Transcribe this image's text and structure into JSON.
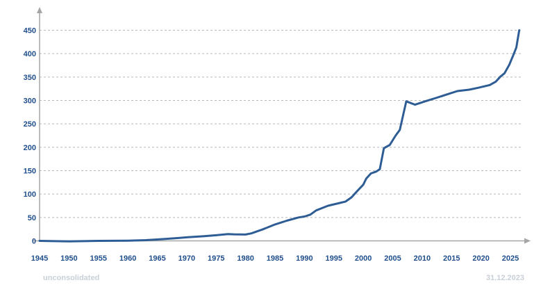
{
  "chart_data": {
    "type": "line",
    "title": "",
    "xlabel": "",
    "ylabel": "",
    "xlim": [
      1945,
      2025
    ],
    "ylim": [
      0,
      450
    ],
    "x_ticks": [
      1945,
      1950,
      1955,
      1960,
      1965,
      1970,
      1975,
      1980,
      1985,
      1990,
      1995,
      2000,
      2005,
      2010,
      2015,
      2020,
      2025
    ],
    "y_ticks": [
      0,
      50,
      100,
      150,
      200,
      250,
      300,
      350,
      400,
      450
    ],
    "grid": true,
    "legend": "none",
    "series": [
      {
        "color": "#2e5d95",
        "points": [
          [
            1945,
            0
          ],
          [
            1950,
            -1
          ],
          [
            1955,
            0
          ],
          [
            1960,
            0.5
          ],
          [
            1963,
            1.5
          ],
          [
            1965,
            3
          ],
          [
            1968,
            5.5
          ],
          [
            1970,
            7.5
          ],
          [
            1973,
            10
          ],
          [
            1975,
            12
          ],
          [
            1977,
            14.5
          ],
          [
            1978,
            14
          ],
          [
            1980,
            13.5
          ],
          [
            1981,
            16
          ],
          [
            1983,
            25
          ],
          [
            1985,
            35
          ],
          [
            1987,
            43
          ],
          [
            1989,
            50
          ],
          [
            1990,
            52
          ],
          [
            1991,
            56
          ],
          [
            1992,
            65
          ],
          [
            1994,
            75
          ],
          [
            1996,
            81
          ],
          [
            1997,
            84
          ],
          [
            1998,
            93
          ],
          [
            1999,
            107
          ],
          [
            2000,
            120
          ],
          [
            2000.5,
            133
          ],
          [
            2001.3,
            144
          ],
          [
            2002.2,
            148
          ],
          [
            2002.8,
            153
          ],
          [
            2003.5,
            198
          ],
          [
            2004.5,
            205
          ],
          [
            2005.5,
            225
          ],
          [
            2006.2,
            237
          ],
          [
            2007.3,
            298
          ],
          [
            2008.8,
            291
          ],
          [
            2010.5,
            298
          ],
          [
            2012.5,
            306
          ],
          [
            2014.5,
            314
          ],
          [
            2016,
            320
          ],
          [
            2018,
            323
          ],
          [
            2019.5,
            327
          ],
          [
            2020.5,
            330
          ],
          [
            2021.5,
            333
          ],
          [
            2022.5,
            340
          ],
          [
            2023.3,
            351
          ],
          [
            2024,
            358
          ],
          [
            2024.8,
            376
          ],
          [
            2025.5,
            397
          ],
          [
            2026,
            413
          ],
          [
            2026.5,
            450
          ]
        ]
      }
    ],
    "footnote_left": "unconsolidated",
    "footnote_right": "31.12.2023"
  }
}
